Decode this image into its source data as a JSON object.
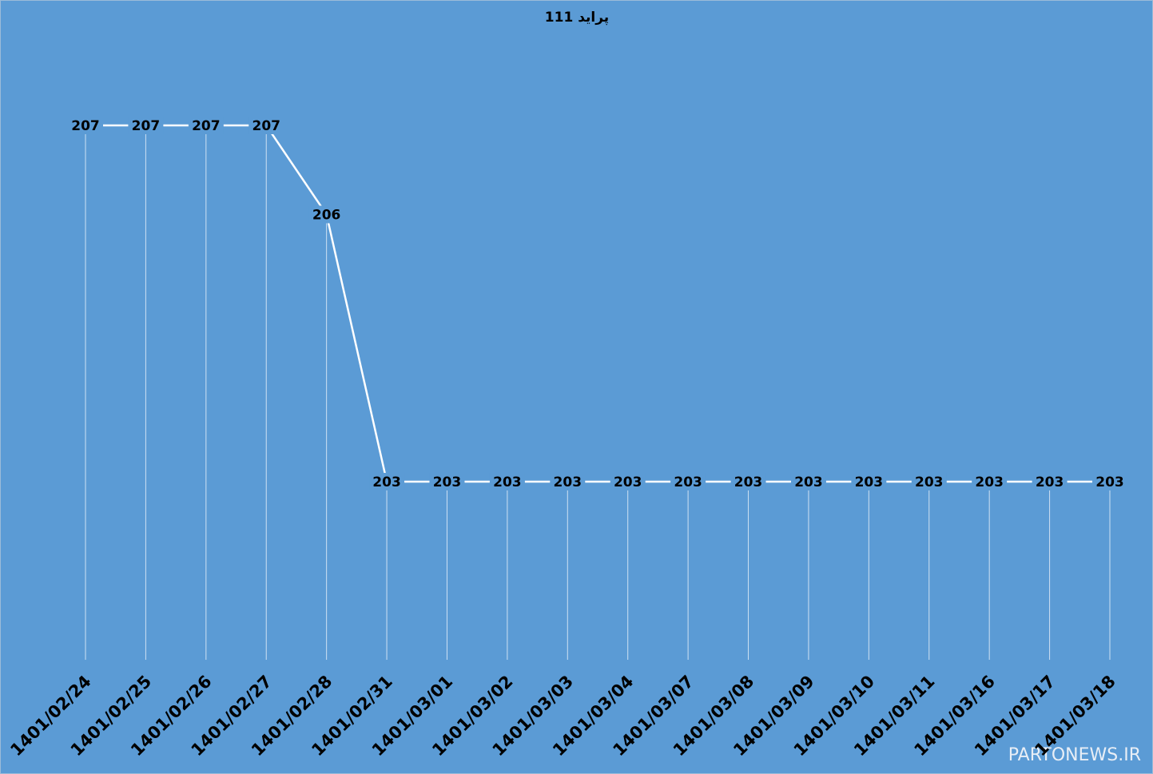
{
  "chart_data": {
    "type": "line",
    "title": "پراید 111",
    "categories": [
      "1401/02/24",
      "1401/02/25",
      "1401/02/26",
      "1401/02/27",
      "1401/02/28",
      "1401/02/31",
      "1401/03/01",
      "1401/03/02",
      "1401/03/03",
      "1401/03/04",
      "1401/03/07",
      "1401/03/08",
      "1401/03/09",
      "1401/03/10",
      "1401/03/11",
      "1401/03/16",
      "1401/03/17",
      "1401/03/18"
    ],
    "series": [
      {
        "name": "پراید 111",
        "color": "#ffffff",
        "values": [
          207,
          207,
          207,
          207,
          206,
          203,
          203,
          203,
          203,
          203,
          203,
          203,
          203,
          203,
          203,
          203,
          203,
          203
        ]
      }
    ],
    "ylim": [
      201,
      208
    ],
    "background": "#5b9bd5",
    "watermark": "PARTONEWS.IR"
  }
}
